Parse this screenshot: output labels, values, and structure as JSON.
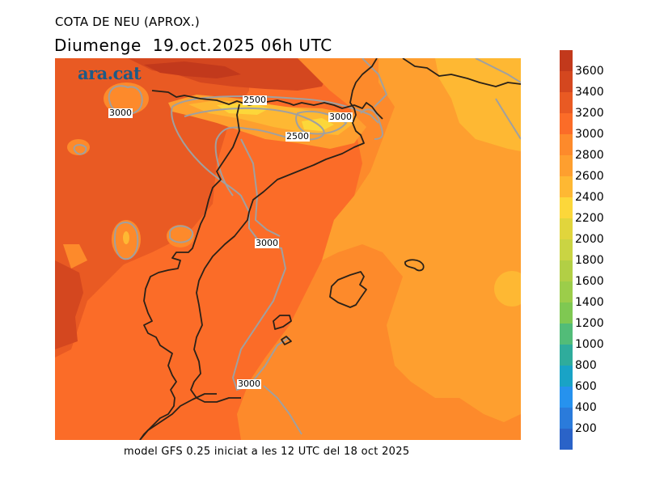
{
  "title": "COTA DE NEU (APROX.)",
  "subtitle": "Diumenge  19.oct.2025 06h UTC",
  "logo": "ara.cat",
  "footer": "model GFS 0.25 iniciat a les 12 UTC del 18 oct 2025",
  "map": {
    "variable": "snow level (m)",
    "contour_interval_m": 500,
    "contour_labels": [
      "3000",
      "2500",
      "3000",
      "2500",
      "3000",
      "3000"
    ],
    "features": [
      "Pyrenees",
      "Catalonia coast",
      "Valencia coast",
      "Mallorca",
      "Menorca",
      "Ibiza",
      "France border",
      "Andorra"
    ]
  },
  "colorbar": {
    "unit": "m",
    "tick_labels": [
      "3600",
      "3400",
      "3200",
      "3000",
      "2800",
      "2600",
      "2400",
      "2200",
      "2000",
      "1800",
      "1600",
      "1400",
      "1200",
      "1000",
      "800",
      "600",
      "400",
      "200"
    ],
    "colors": [
      "#c2391c",
      "#d4471f",
      "#e95a23",
      "#fb6c28",
      "#fd8a2b",
      "#fe9f2f",
      "#feb833",
      "#fcd73a",
      "#e1d53c",
      "#cad443",
      "#b2cf45",
      "#9ccd4a",
      "#7fc852",
      "#52bc78",
      "#2fac9c",
      "#19a3c6",
      "#2692ee",
      "#2a7bdb",
      "#2a63c8"
    ]
  }
}
